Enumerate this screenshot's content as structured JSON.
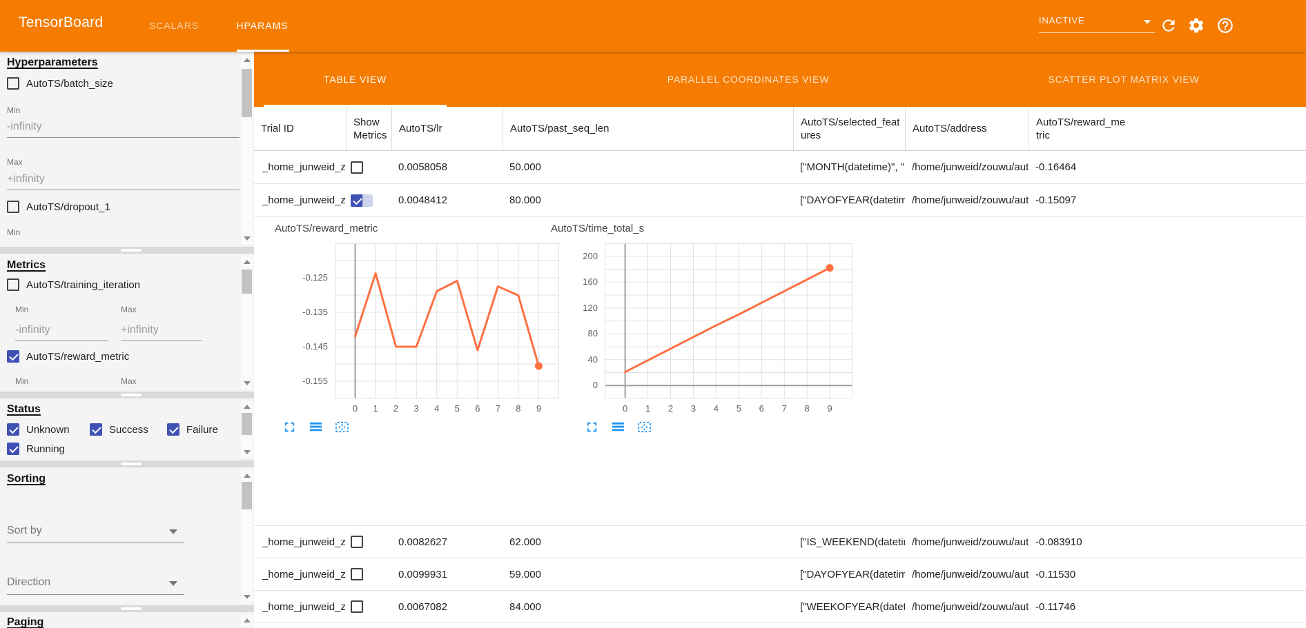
{
  "header": {
    "title": "TensorBoard",
    "nav_tabs": [
      {
        "label": "SCALARS",
        "active": false
      },
      {
        "label": "HPARAMS",
        "active": true
      }
    ],
    "status_dropdown": {
      "value": "INACTIVE"
    },
    "icons": {
      "refresh": "refresh-icon",
      "settings": "gear-icon",
      "help": "help-icon"
    }
  },
  "sidebar": {
    "hyperparameters": {
      "heading": "Hyperparameters",
      "items": [
        {
          "label": "AutoTS/batch_size",
          "checked": false
        },
        {
          "label": "AutoTS/dropout_1",
          "checked": false
        }
      ],
      "min_label": "Min",
      "max_label": "Max",
      "min_value": "-infinity",
      "max_value": "+infinity"
    },
    "metrics": {
      "heading": "Metrics",
      "items": [
        {
          "label": "AutoTS/training_iteration",
          "checked": false
        },
        {
          "label": "AutoTS/reward_metric",
          "checked": true
        }
      ],
      "min_label": "Min",
      "max_label": "Max",
      "min_value": "-infinity",
      "max_value": "+infinity"
    },
    "status": {
      "heading": "Status",
      "items": [
        {
          "label": "Unknown",
          "checked": true
        },
        {
          "label": "Success",
          "checked": true
        },
        {
          "label": "Failure",
          "checked": true
        },
        {
          "label": "Running",
          "checked": true
        }
      ]
    },
    "sorting": {
      "heading": "Sorting",
      "sort_by_placeholder": "Sort by",
      "direction_placeholder": "Direction"
    },
    "paging": {
      "heading": "Paging"
    }
  },
  "main": {
    "view_tabs": [
      {
        "label": "TABLE VIEW",
        "active": true
      },
      {
        "label": "PARALLEL COORDINATES VIEW",
        "active": false
      },
      {
        "label": "SCATTER PLOT MATRIX VIEW",
        "active": false
      }
    ],
    "table": {
      "columns": [
        "Trial ID",
        "Show Metrics",
        "AutoTS/lr",
        "AutoTS/past_seq_len",
        "AutoTS/selected_features",
        "AutoTS/address",
        "AutoTS/reward_metric"
      ],
      "rows": [
        {
          "trial_id": "_home_junweid_z…",
          "show_metrics": false,
          "lr": "0.0058058",
          "past_seq_len": "50.000",
          "selected_features": "[\"MONTH(datetime)\", \"I…",
          "address": "/home/junweid/zouwu/aut…",
          "reward_metric": "-0.16464"
        },
        {
          "trial_id": "_home_junweid_z…",
          "show_metrics": true,
          "lr": "0.0048412",
          "past_seq_len": "80.000",
          "selected_features": "[\"DAYOFYEAR(datetime…",
          "address": "/home/junweid/zouwu/aut…",
          "reward_metric": "-0.15097"
        },
        {
          "trial_id": "_home_junweid_z…",
          "show_metrics": false,
          "lr": "0.0082627",
          "past_seq_len": "62.000",
          "selected_features": "[\"IS_WEEKEND(datetim…",
          "address": "/home/junweid/zouwu/aut…",
          "reward_metric": "-0.083910"
        },
        {
          "trial_id": "_home_junweid_z…",
          "show_metrics": false,
          "lr": "0.0099931",
          "past_seq_len": "59.000",
          "selected_features": "[\"DAYOFYEAR(datetime…",
          "address": "/home/junweid/zouwu/aut…",
          "reward_metric": "-0.11530"
        },
        {
          "trial_id": "_home_junweid_z…",
          "show_metrics": false,
          "lr": "0.0067082",
          "past_seq_len": "84.000",
          "selected_features": "[\"WEEKOFYEAR(dateti…",
          "address": "/home/junweid/zouwu/aut…",
          "reward_metric": "-0.11746"
        }
      ]
    },
    "chart_controls": {
      "icons": [
        "fullscreen-icon",
        "data-table-icon",
        "fit-domain-icon"
      ]
    }
  },
  "chart_data": [
    {
      "type": "line",
      "title": "AutoTS/reward_metric",
      "x": [
        0,
        1,
        2,
        3,
        4,
        5,
        6,
        7,
        8,
        9
      ],
      "values": [
        -0.142,
        -0.1237,
        -0.145,
        -0.145,
        -0.1289,
        -0.1259,
        -0.146,
        -0.1275,
        -0.1301,
        -0.1506
      ],
      "xlabel": "",
      "ylabel": "",
      "xlim": [
        -1,
        10
      ],
      "ylim": [
        -0.16,
        -0.115
      ],
      "xticks": [
        0,
        1,
        2,
        3,
        4,
        5,
        6,
        7,
        8,
        9
      ],
      "xtick_labels": [
        "0",
        "1",
        "2",
        "3",
        "4",
        "5",
        "6",
        "7",
        "8",
        "9"
      ],
      "yticks": [
        -0.125,
        -0.135,
        -0.145,
        -0.155
      ],
      "ytick_labels": [
        "-0.125",
        "-0.135",
        "-0.145",
        "-0.155"
      ],
      "grid": true,
      "legend": "none",
      "line_color": "#ff7043",
      "end_marker": true
    },
    {
      "type": "line",
      "title": "AutoTS/time_total_s",
      "x": [
        0,
        1,
        2,
        3,
        4,
        5,
        6,
        7,
        8,
        9
      ],
      "values": [
        21,
        39,
        57,
        75,
        93,
        110,
        128,
        146,
        164,
        182
      ],
      "xlabel": "",
      "ylabel": "",
      "xlim": [
        -0.9,
        10
      ],
      "ylim": [
        -20,
        220
      ],
      "xticks": [
        0,
        1,
        2,
        3,
        4,
        5,
        6,
        7,
        8,
        9
      ],
      "xtick_labels": [
        "0",
        "1",
        "2",
        "3",
        "4",
        "5",
        "6",
        "7",
        "8",
        "9"
      ],
      "yticks": [
        200,
        160,
        120,
        80,
        40,
        0
      ],
      "ytick_labels": [
        "200",
        "160",
        "120",
        "80",
        "40",
        "0"
      ],
      "grid": true,
      "legend": "none",
      "line_color": "#ff7043",
      "end_marker": true
    }
  ],
  "colors": {
    "header_orange": "#f57c00",
    "chart_line": "#ff7043",
    "checkbox_checked": "#3f51b5",
    "control_icon_blue": "#2196f3"
  }
}
